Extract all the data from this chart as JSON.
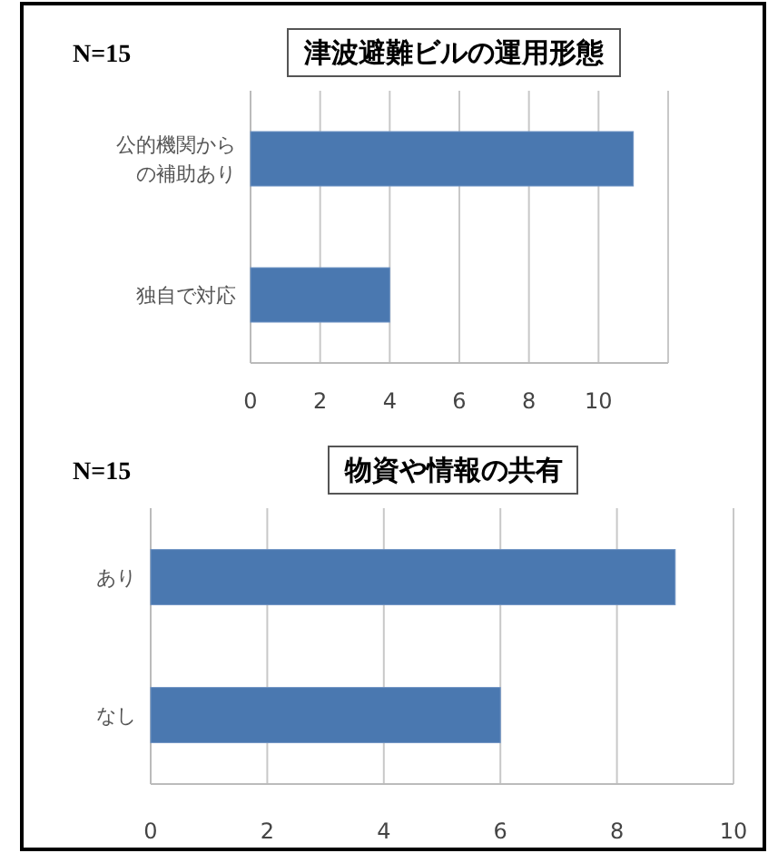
{
  "chart_data": [
    {
      "type": "bar",
      "orientation": "horizontal",
      "title": "津波避難ビルの運用形態",
      "annotations": [
        "N=15"
      ],
      "categories": [
        "公的機関からの補助あり",
        "独自で対応"
      ],
      "values": [
        11,
        4
      ],
      "color": "#4a78b0",
      "xlim": [
        0,
        12
      ],
      "xticks": [
        0,
        2,
        4,
        6,
        8,
        10,
        {
          "value": 12,
          "label": null
        }
      ],
      "grid": "x"
    },
    {
      "type": "bar",
      "orientation": "horizontal",
      "title": "物資や情報の共有",
      "annotations": [
        "N=15"
      ],
      "categories": [
        "あり",
        "なし"
      ],
      "values": [
        9,
        6
      ],
      "color": "#4a78b0",
      "xlim": [
        0,
        10
      ],
      "xticks": [
        0,
        2,
        4,
        6,
        8,
        10
      ],
      "grid": "x"
    }
  ]
}
